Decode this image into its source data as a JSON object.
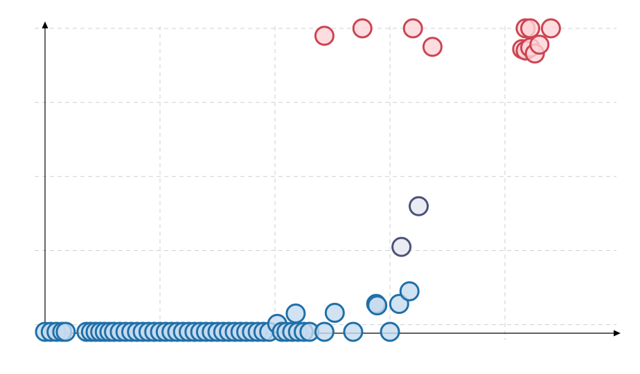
{
  "chart_data": {
    "type": "scatter",
    "title": "",
    "xlabel": "",
    "ylabel": "",
    "xlim": [
      0,
      5
    ],
    "ylim": [
      -0.1,
      4
    ],
    "xticks": [
      1,
      2,
      3,
      4
    ],
    "yticks": [
      0,
      1,
      2,
      3,
      4
    ],
    "grid": true,
    "legend": "none",
    "tick_labels_visible": false,
    "colors": {
      "low_fill": "#c6dbef",
      "low_stroke": "#1f6fa8",
      "mid_fill": "#e6e6ef",
      "mid_stroke": "#4a5278",
      "high_fill": "#fcd5d8",
      "high_stroke": "#cc4452"
    },
    "points": [
      {
        "x": 0.0,
        "y": 0.0
      },
      {
        "x": 0.05,
        "y": 0.0
      },
      {
        "x": 0.1,
        "y": 0.0
      },
      {
        "x": 0.15,
        "y": 0.0
      },
      {
        "x": 0.18,
        "y": 0.0
      },
      {
        "x": 0.36,
        "y": 0.0
      },
      {
        "x": 0.4,
        "y": 0.0
      },
      {
        "x": 0.44,
        "y": 0.0
      },
      {
        "x": 0.48,
        "y": 0.0
      },
      {
        "x": 0.52,
        "y": 0.0
      },
      {
        "x": 0.56,
        "y": 0.0
      },
      {
        "x": 0.6,
        "y": 0.0
      },
      {
        "x": 0.65,
        "y": 0.0
      },
      {
        "x": 0.7,
        "y": 0.0
      },
      {
        "x": 0.75,
        "y": 0.0
      },
      {
        "x": 0.8,
        "y": 0.0
      },
      {
        "x": 0.85,
        "y": 0.0
      },
      {
        "x": 0.9,
        "y": 0.0
      },
      {
        "x": 0.95,
        "y": 0.0
      },
      {
        "x": 1.0,
        "y": 0.0
      },
      {
        "x": 1.05,
        "y": 0.0
      },
      {
        "x": 1.1,
        "y": 0.0
      },
      {
        "x": 1.15,
        "y": 0.0
      },
      {
        "x": 1.2,
        "y": 0.0
      },
      {
        "x": 1.25,
        "y": 0.0
      },
      {
        "x": 1.3,
        "y": 0.0
      },
      {
        "x": 1.35,
        "y": 0.0
      },
      {
        "x": 1.4,
        "y": 0.0
      },
      {
        "x": 1.45,
        "y": 0.0
      },
      {
        "x": 1.5,
        "y": 0.0
      },
      {
        "x": 1.55,
        "y": 0.0
      },
      {
        "x": 1.6,
        "y": 0.0
      },
      {
        "x": 1.65,
        "y": 0.0
      },
      {
        "x": 1.7,
        "y": 0.0
      },
      {
        "x": 1.75,
        "y": 0.0
      },
      {
        "x": 1.8,
        "y": 0.0
      },
      {
        "x": 1.85,
        "y": 0.0
      },
      {
        "x": 1.9,
        "y": 0.0
      },
      {
        "x": 1.95,
        "y": 0.0
      },
      {
        "x": 2.02,
        "y": 0.01
      },
      {
        "x": 2.06,
        "y": 0.0
      },
      {
        "x": 2.1,
        "y": 0.0
      },
      {
        "x": 2.15,
        "y": 0.0
      },
      {
        "x": 2.2,
        "y": 0.0
      },
      {
        "x": 2.25,
        "y": 0.0
      },
      {
        "x": 2.3,
        "y": 0.0
      },
      {
        "x": 2.43,
        "y": 0.0
      },
      {
        "x": 2.68,
        "y": 0.0
      },
      {
        "x": 3.0,
        "y": 0.0
      },
      {
        "x": 2.18,
        "y": 0.15
      },
      {
        "x": 2.52,
        "y": 0.16
      },
      {
        "x": 2.88,
        "y": 0.28
      },
      {
        "x": 2.89,
        "y": 0.26
      },
      {
        "x": 3.08,
        "y": 0.28
      },
      {
        "x": 3.17,
        "y": 0.45
      },
      {
        "x": 3.1,
        "y": 1.05
      },
      {
        "x": 3.25,
        "y": 1.6
      },
      {
        "x": 2.43,
        "y": 3.9
      },
      {
        "x": 2.76,
        "y": 4.0
      },
      {
        "x": 3.2,
        "y": 4.0
      },
      {
        "x": 3.37,
        "y": 3.75
      },
      {
        "x": 4.18,
        "y": 4.0
      },
      {
        "x": 4.22,
        "y": 4.0
      },
      {
        "x": 4.4,
        "y": 4.0
      },
      {
        "x": 4.15,
        "y": 3.72
      },
      {
        "x": 4.18,
        "y": 3.7
      },
      {
        "x": 4.22,
        "y": 3.74
      },
      {
        "x": 4.26,
        "y": 3.66
      },
      {
        "x": 4.3,
        "y": 3.78
      }
    ]
  }
}
